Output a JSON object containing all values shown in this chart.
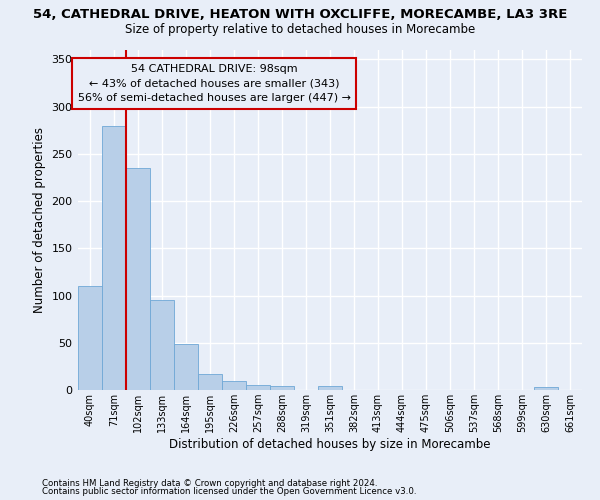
{
  "title1": "54, CATHEDRAL DRIVE, HEATON WITH OXCLIFFE, MORECAMBE, LA3 3RE",
  "title2": "Size of property relative to detached houses in Morecambe",
  "xlabel": "Distribution of detached houses by size in Morecambe",
  "ylabel": "Number of detached properties",
  "categories": [
    "40sqm",
    "71sqm",
    "102sqm",
    "133sqm",
    "164sqm",
    "195sqm",
    "226sqm",
    "257sqm",
    "288sqm",
    "319sqm",
    "351sqm",
    "382sqm",
    "413sqm",
    "444sqm",
    "475sqm",
    "506sqm",
    "537sqm",
    "568sqm",
    "599sqm",
    "630sqm",
    "661sqm"
  ],
  "values": [
    110,
    280,
    235,
    95,
    49,
    17,
    10,
    5,
    4,
    0,
    4,
    0,
    0,
    0,
    0,
    0,
    0,
    0,
    0,
    3,
    0
  ],
  "bar_color": "#b8cfe8",
  "bar_edge_color": "#6fa8d6",
  "ylim": [
    0,
    360
  ],
  "yticks": [
    0,
    50,
    100,
    150,
    200,
    250,
    300,
    350
  ],
  "vline_x": 2.0,
  "vline_color": "#cc0000",
  "annotation_line1": "54 CATHEDRAL DRIVE: 98sqm",
  "annotation_line2": "← 43% of detached houses are smaller (343)",
  "annotation_line3": "56% of semi-detached houses are larger (447) →",
  "annotation_box_color": "#cc0000",
  "footer1": "Contains HM Land Registry data © Crown copyright and database right 2024.",
  "footer2": "Contains public sector information licensed under the Open Government Licence v3.0.",
  "bg_color": "#e8eef8",
  "grid_color": "#ffffff"
}
